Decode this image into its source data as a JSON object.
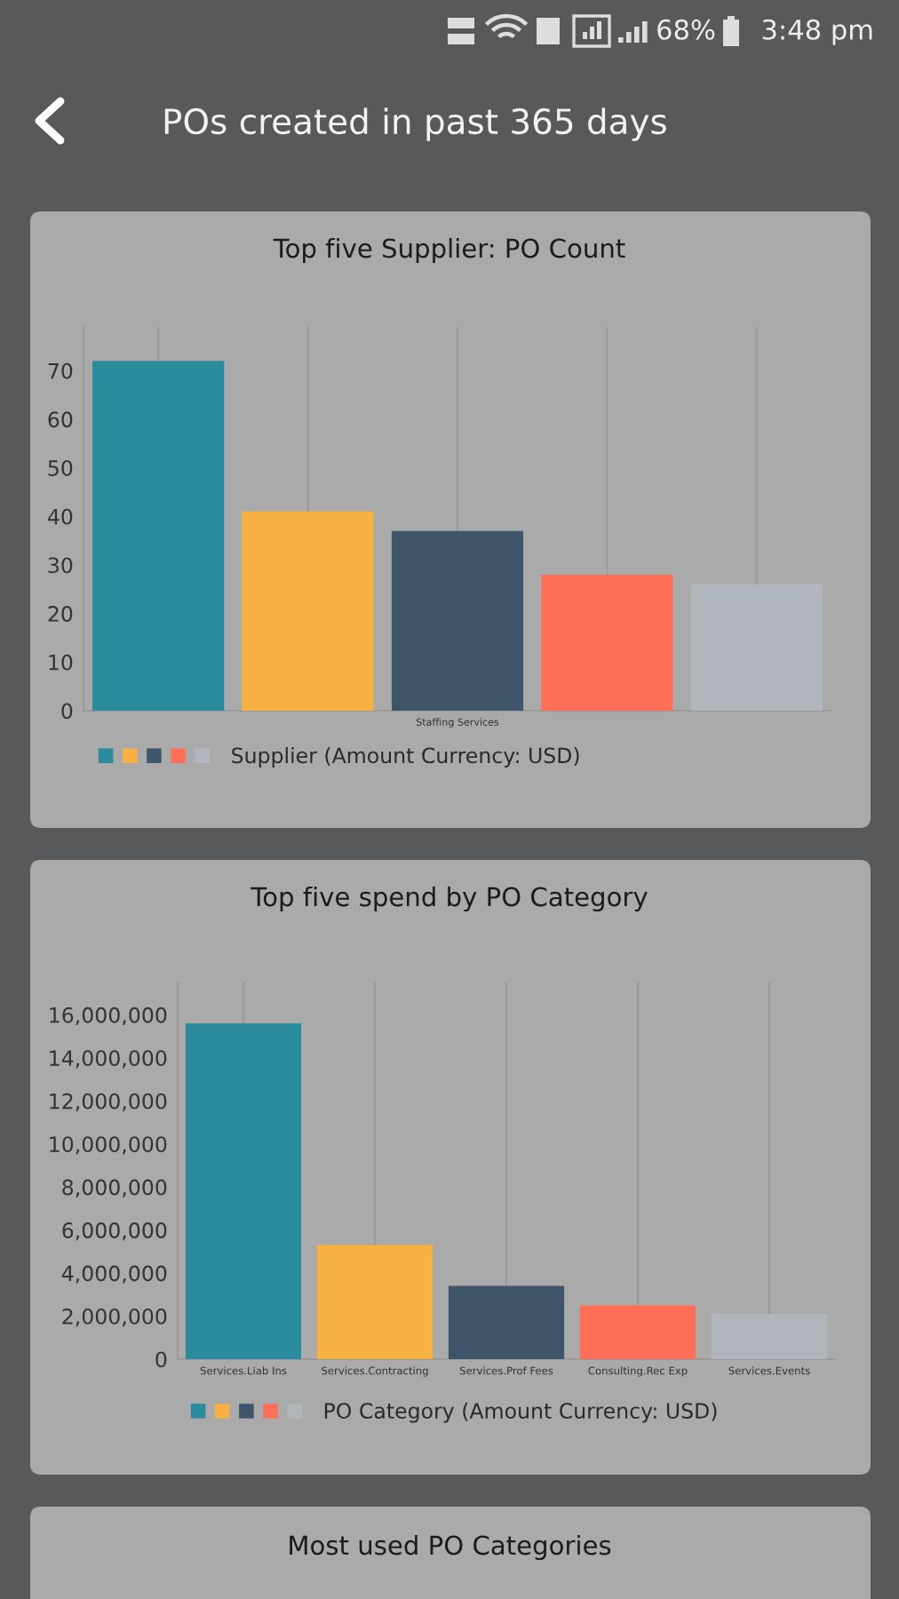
{
  "chart_data": [
    {
      "type": "other",
      "title": "POs created in past 365 days",
      "annotations": [
        "68%",
        "3:48 pm"
      ]
    },
    {
      "type": "bar",
      "title": "Top five Supplier: PO Count",
      "categories": [
        null,
        null,
        "Staffing Services",
        null,
        null
      ],
      "series": [
        {
          "name": "Supplier (Amount Currency: USD)",
          "colors": [
            "#2b8a9b",
            "#f7b142",
            "#3f5569",
            "#ff6e56",
            "#b1b6bd"
          ],
          "values": [
            72,
            41,
            37,
            28,
            26
          ]
        }
      ],
      "ylim": [
        0,
        79
      ],
      "yticks": [
        0,
        10,
        20,
        30,
        40,
        50,
        60,
        70
      ],
      "grid": "x",
      "legend": "bottom"
    },
    {
      "type": "bar",
      "title": "Top five spend by PO Category",
      "categories": [
        "Services.Liab Ins",
        "Services.Contracting",
        "Services.Prof Fees",
        "Consulting.Rec Exp",
        "Services.Events"
      ],
      "series": [
        {
          "name": "PO Category (Amount Currency: USD)",
          "colors": [
            "#2b8a9b",
            "#f7b142",
            "#3f5569",
            "#ff6e56",
            "#b1b6bd"
          ],
          "values": [
            15600000,
            5300000,
            3400000,
            2500000,
            2100000
          ]
        }
      ],
      "ylim": [
        0,
        17500000
      ],
      "yticks": [
        0,
        {
          "value": 2000000,
          "label": "2,000,000"
        },
        {
          "value": 4000000,
          "label": "4,000,000"
        },
        {
          "value": 6000000,
          "label": "6,000,000"
        },
        {
          "value": 8000000,
          "label": "8,000,000"
        },
        {
          "value": 10000000,
          "label": "10,000,000"
        },
        {
          "value": 12000000,
          "label": "12,000,000"
        },
        {
          "value": 14000000,
          "label": "14,000,000"
        },
        {
          "value": 16000000,
          "label": "16,000,000"
        }
      ],
      "grid": "x",
      "legend": "bottom"
    },
    {
      "type": "other",
      "title": "Most used PO Categories"
    }
  ]
}
